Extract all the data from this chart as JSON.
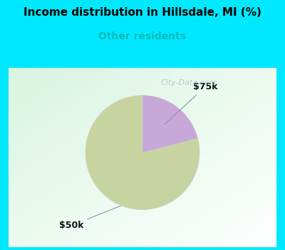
{
  "title": "Income distribution in Hillsdale, MI (%)",
  "subtitle": "Other residents",
  "title_color": "#000000",
  "subtitle_color": "#00bbbb",
  "bg_color_top": "#00e8ff",
  "slices": [
    79,
    21
  ],
  "labels": [
    "$50k",
    "$75k"
  ],
  "colors": [
    "#c8d4a0",
    "#c8a8d8"
  ],
  "startangle": 90,
  "watermark": "City-Data.com",
  "watermark_color": "#aabbcc",
  "watermark_fontsize": 8,
  "label_fontsize": 9,
  "title_fontsize": 11,
  "subtitle_fontsize": 10
}
